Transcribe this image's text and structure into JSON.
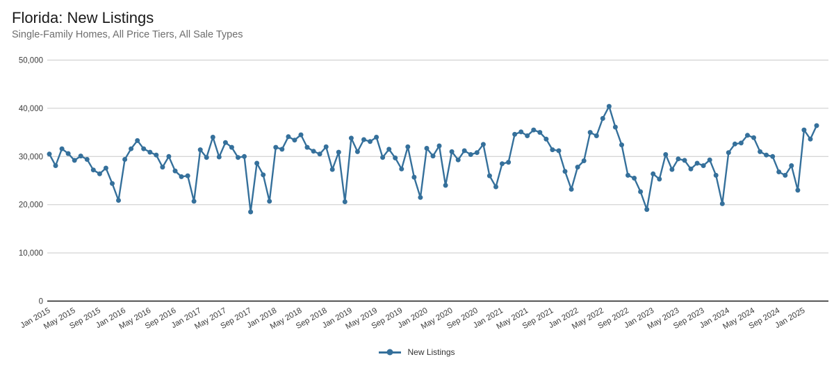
{
  "header": {
    "title": "Florida: New Listings",
    "subtitle": "Single-Family Homes, All Price Tiers, All Sale Types"
  },
  "legend": {
    "items": [
      {
        "label": "New Listings",
        "color": "#35709B"
      }
    ]
  },
  "colors": {
    "line": "#35709B",
    "grid": "#c9c9c9",
    "axis_line": "#1a1a1a",
    "axis_text": "#3b3b3b",
    "title": "#1a1a1a",
    "subtitle": "#6d6d6d",
    "background": "#ffffff"
  },
  "chart_data": {
    "type": "line",
    "title": "Florida: New Listings",
    "subtitle": "Single-Family Homes, All Price Tiers, All Sale Types",
    "xlabel": "",
    "ylabel": "",
    "x_start": "Jan 2015",
    "x_end": "Mar 2025",
    "x_frequency": "monthly",
    "ylim": [
      0,
      50000
    ],
    "y_ticks": [
      0,
      10000,
      20000,
      30000,
      40000,
      50000
    ],
    "y_tick_labels": [
      "0",
      "10,000",
      "20,000",
      "30,000",
      "40,000",
      "50,000"
    ],
    "x_tick_every": 4,
    "x_tick_labels": [
      "Jan 2015",
      "May 2015",
      "Sep 2015",
      "Jan 2016",
      "May 2016",
      "Sep 2016",
      "Jan 2017",
      "May 2017",
      "Sep 2017",
      "Jan 2018",
      "May 2018",
      "Sep 2018",
      "Jan 2019",
      "May 2019",
      "Sep 2019",
      "Jan 2020",
      "May 2020",
      "Sep 2020",
      "Jan 2021",
      "May 2021",
      "Sep 2021",
      "Jan 2022",
      "May 2022",
      "Sep 2022",
      "Jan 2023",
      "May 2023",
      "Sep 2023",
      "Jan 2024",
      "May 2024",
      "Sep 2024",
      "Jan 2025"
    ],
    "grid": "horizontal",
    "legend_position": "bottom",
    "marker": "circle",
    "series": [
      {
        "name": "New Listings",
        "color": "#35709B",
        "values": [
          30500,
          28100,
          31600,
          30600,
          29200,
          30100,
          29400,
          27200,
          26400,
          27600,
          24400,
          20900,
          29400,
          31600,
          33300,
          31600,
          30900,
          30300,
          27800,
          30000,
          27000,
          25800,
          26000,
          20700,
          31400,
          29800,
          34000,
          29900,
          32900,
          31900,
          29800,
          30000,
          18500,
          28600,
          26200,
          20700,
          31900,
          31500,
          34100,
          33400,
          34500,
          31900,
          31100,
          30500,
          32000,
          27300,
          30900,
          20600,
          33800,
          31000,
          33500,
          33100,
          34000,
          29800,
          31500,
          29700,
          27400,
          32000,
          25700,
          21500,
          31700,
          30100,
          32200,
          24000,
          31000,
          29300,
          31200,
          30400,
          30800,
          32500,
          26000,
          23700,
          28500,
          28800,
          34600,
          35100,
          34300,
          35500,
          35000,
          33600,
          31400,
          31200,
          26900,
          23200,
          27800,
          29100,
          35000,
          34300,
          37900,
          40400,
          36100,
          32400,
          26100,
          25500,
          22700,
          19000,
          26400,
          25300,
          30400,
          27300,
          29500,
          29200,
          27400,
          28600,
          28100,
          29300,
          26100,
          20200,
          30800,
          32600,
          32800,
          34400,
          33900,
          31000,
          30300,
          30000,
          26800,
          26100,
          28100,
          23000,
          35500,
          33600,
          36400
        ]
      }
    ]
  }
}
